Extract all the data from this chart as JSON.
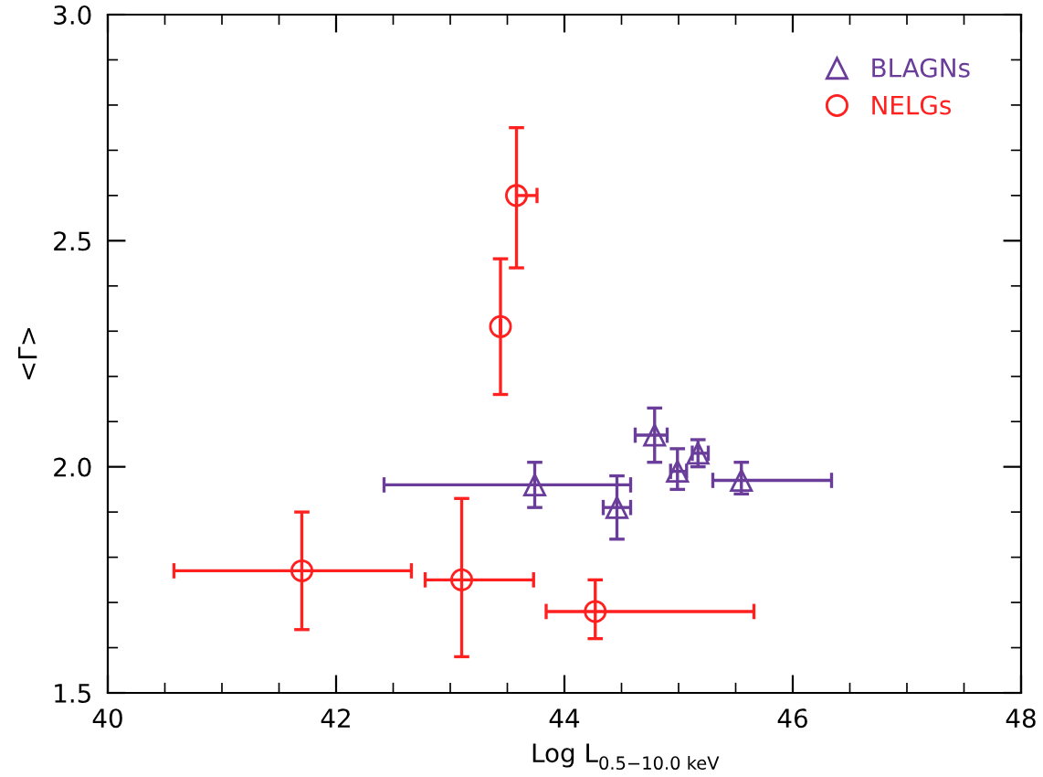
{
  "chart_data": {
    "type": "scatter",
    "xlabel": "Log L$_{0.5−10.0 keV}$",
    "ylabel": "<Γ>",
    "xlim": [
      40,
      48
    ],
    "xticks": [
      40,
      42,
      44,
      46,
      48
    ],
    "ylim": [
      1.5,
      3.0
    ],
    "yticks": [
      1.5,
      {
        "value": 2,
        "label": "2.0"
      },
      2.5,
      {
        "value": 3,
        "label": "3.0"
      }
    ],
    "legend": "top right",
    "grid": false,
    "series": [
      {
        "name": "BLAGNs",
        "color": "#6a3d9a",
        "marker": "triangle",
        "x": [
          43.74,
          44.46,
          44.79,
          44.99,
          45.17,
          45.55
        ],
        "values": [
          1.96,
          1.91,
          2.07,
          1.99,
          2.03,
          1.97
        ],
        "errors": [
          [
            1.91,
            2.01
          ],
          [
            1.84,
            1.98
          ],
          [
            2.01,
            2.13
          ],
          [
            1.95,
            2.04
          ],
          [
            2.0,
            2.06
          ],
          [
            1.94,
            2.01
          ]
        ],
        "xerrors": [
          [
            42.42,
            44.58
          ],
          [
            44.34,
            44.58
          ],
          [
            44.62,
            44.9
          ],
          [
            44.93,
            45.07
          ],
          [
            45.12,
            45.26
          ],
          [
            45.3,
            46.34
          ]
        ]
      },
      {
        "name": "NELGs",
        "color": "#ff2020",
        "marker": "circle",
        "x": [
          41.7,
          43.1,
          43.44,
          43.58,
          44.27
        ],
        "values": [
          1.77,
          1.75,
          2.31,
          2.6,
          1.68
        ],
        "errors": [
          [
            1.64,
            1.9
          ],
          [
            1.58,
            1.93
          ],
          [
            2.16,
            2.46
          ],
          [
            2.44,
            2.75
          ],
          [
            1.62,
            1.75
          ]
        ],
        "xerrors": [
          [
            40.58,
            42.66
          ],
          [
            42.78,
            43.73
          ],
          null,
          [
            43.58,
            43.76
          ],
          [
            43.84,
            45.66
          ]
        ]
      }
    ]
  }
}
